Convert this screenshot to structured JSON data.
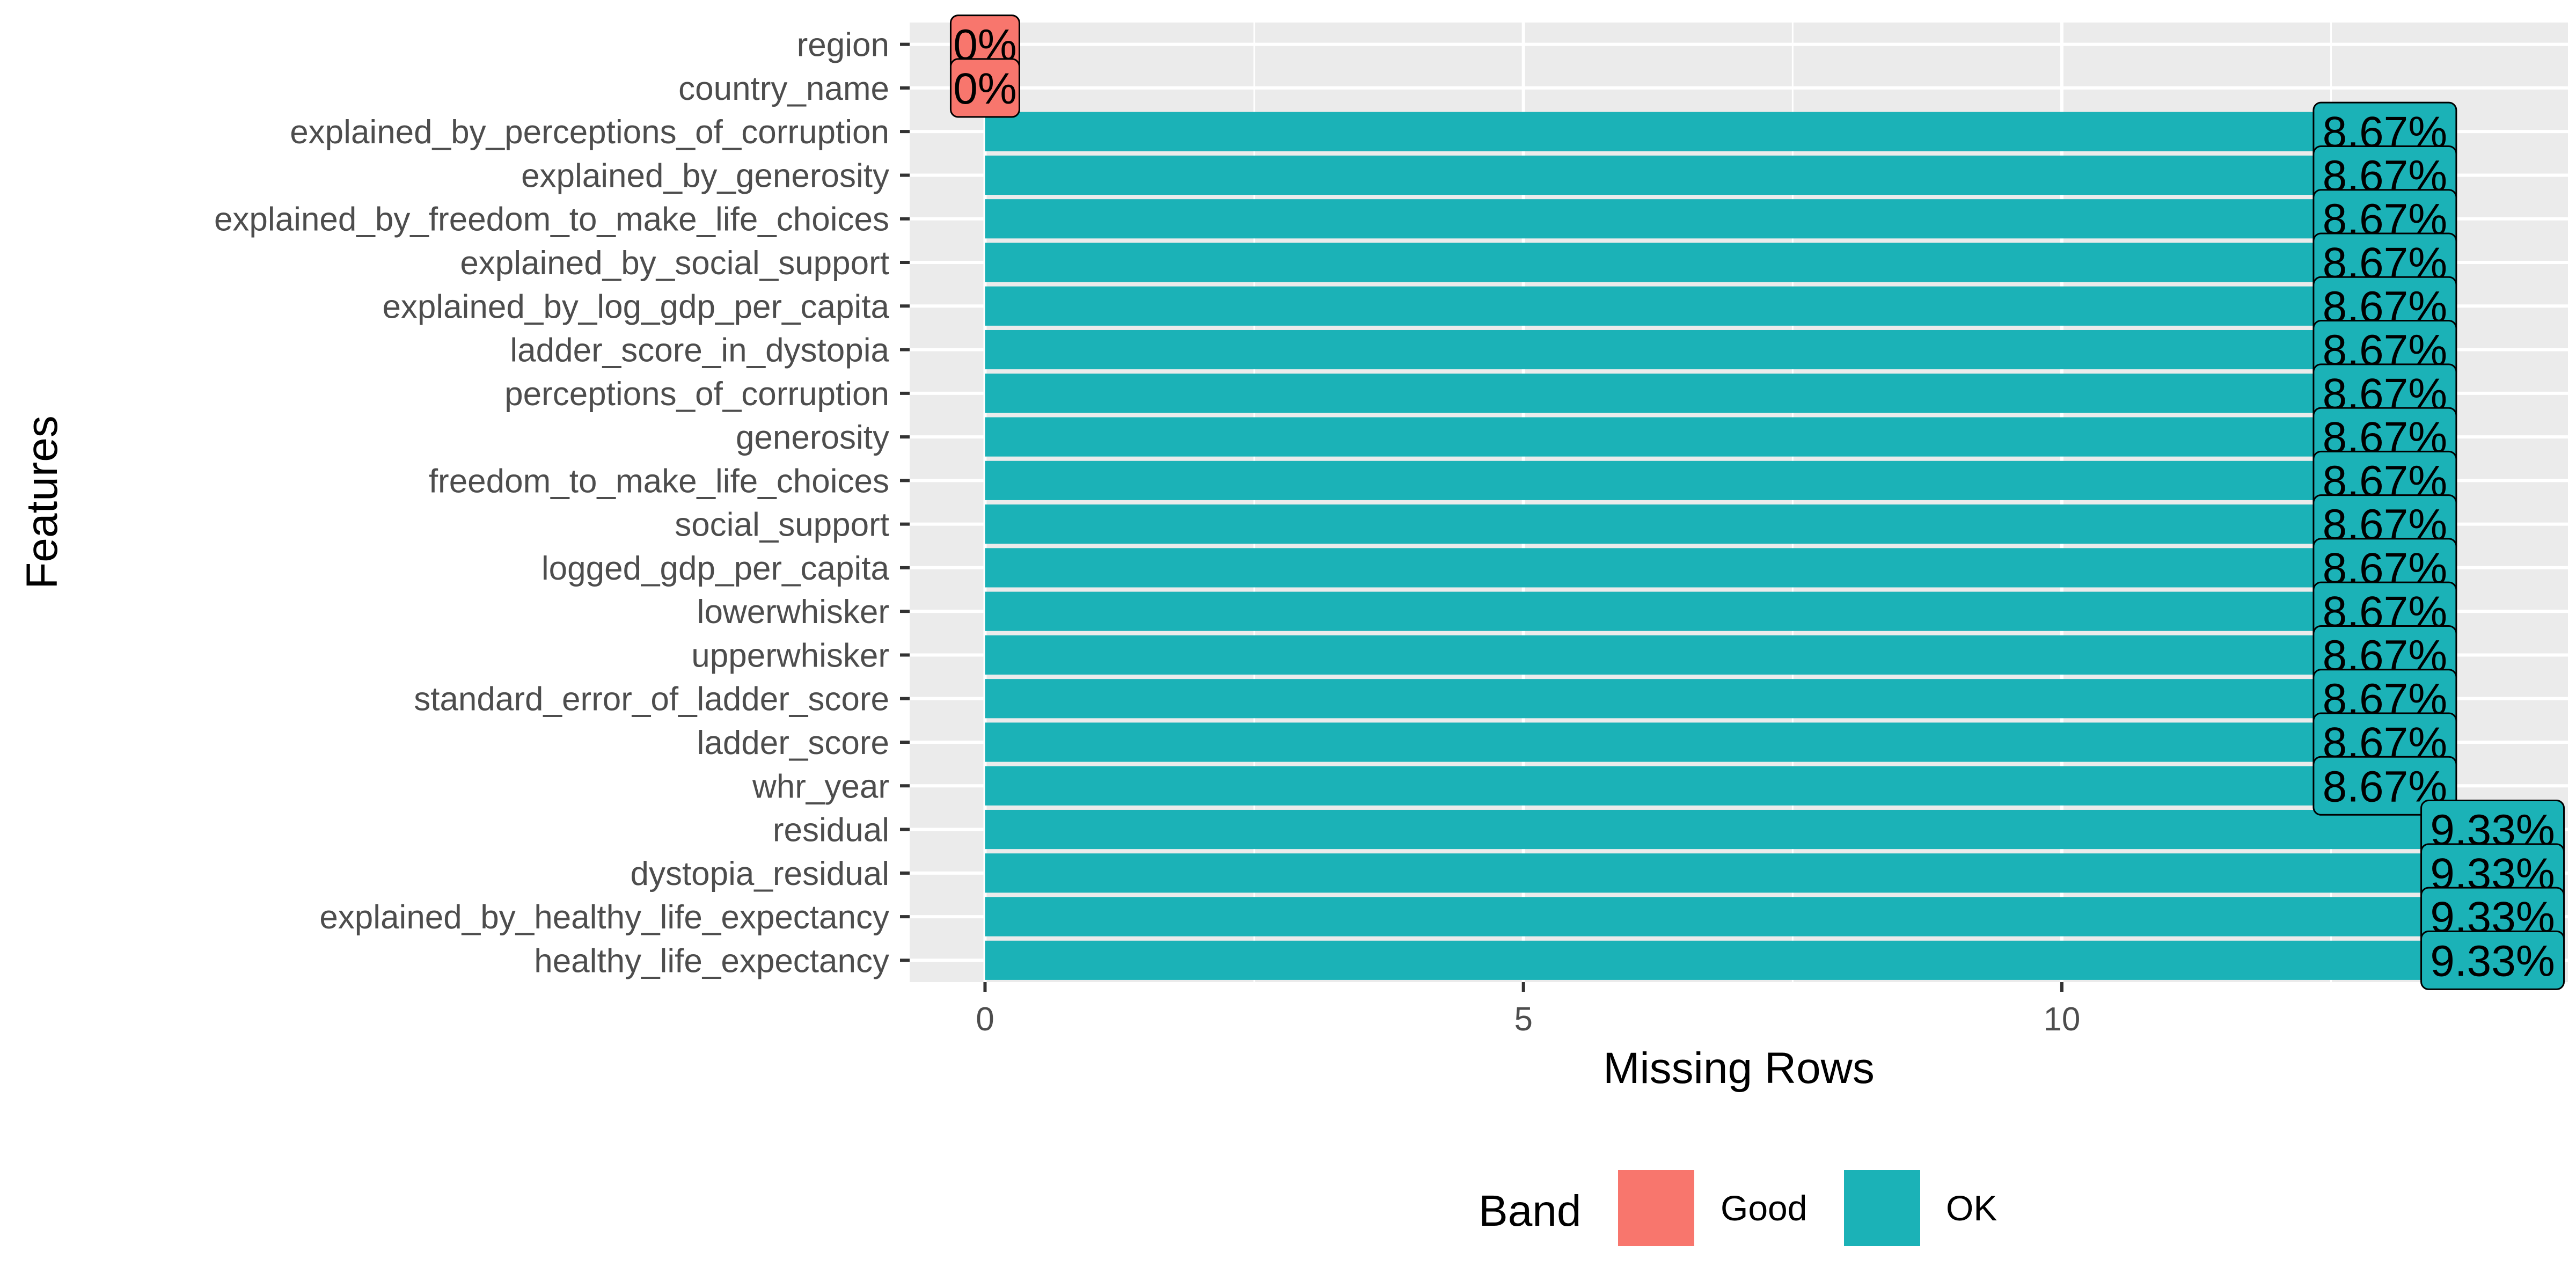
{
  "chart_data": {
    "type": "bar",
    "orientation": "horizontal",
    "xlabel": "Missing Rows",
    "ylabel": "Features",
    "xlim": [
      -0.7,
      14.7
    ],
    "xticks": [
      0,
      5,
      10
    ],
    "grid": true,
    "legend": {
      "title": "Band",
      "position": "bottom",
      "entries": [
        {
          "label": "Good",
          "color": "#F8766D"
        },
        {
          "label": "OK",
          "color": "#1BB2B7"
        }
      ]
    },
    "categories": [
      "region",
      "country_name",
      "explained_by_perceptions_of_corruption",
      "explained_by_generosity",
      "explained_by_freedom_to_make_life_choices",
      "explained_by_social_support",
      "explained_by_log_gdp_per_capita",
      "ladder_score_in_dystopia",
      "perceptions_of_corruption",
      "generosity",
      "freedom_to_make_life_choices",
      "social_support",
      "logged_gdp_per_capita",
      "lowerwhisker",
      "upperwhisker",
      "standard_error_of_ladder_score",
      "ladder_score",
      "whr_year",
      "residual",
      "dystopia_residual",
      "explained_by_healthy_life_expectancy",
      "healthy_life_expectancy"
    ],
    "values": [
      0,
      0,
      13,
      13,
      13,
      13,
      13,
      13,
      13,
      13,
      13,
      13,
      13,
      13,
      13,
      13,
      13,
      13,
      14,
      14,
      14,
      14
    ],
    "labels": [
      "0%",
      "0%",
      "8.67%",
      "8.67%",
      "8.67%",
      "8.67%",
      "8.67%",
      "8.67%",
      "8.67%",
      "8.67%",
      "8.67%",
      "8.67%",
      "8.67%",
      "8.67%",
      "8.67%",
      "8.67%",
      "8.67%",
      "8.67%",
      "9.33%",
      "9.33%",
      "9.33%",
      "9.33%"
    ],
    "bands": [
      "Good",
      "Good",
      "OK",
      "OK",
      "OK",
      "OK",
      "OK",
      "OK",
      "OK",
      "OK",
      "OK",
      "OK",
      "OK",
      "OK",
      "OK",
      "OK",
      "OK",
      "OK",
      "OK",
      "OK",
      "OK",
      "OK"
    ]
  }
}
